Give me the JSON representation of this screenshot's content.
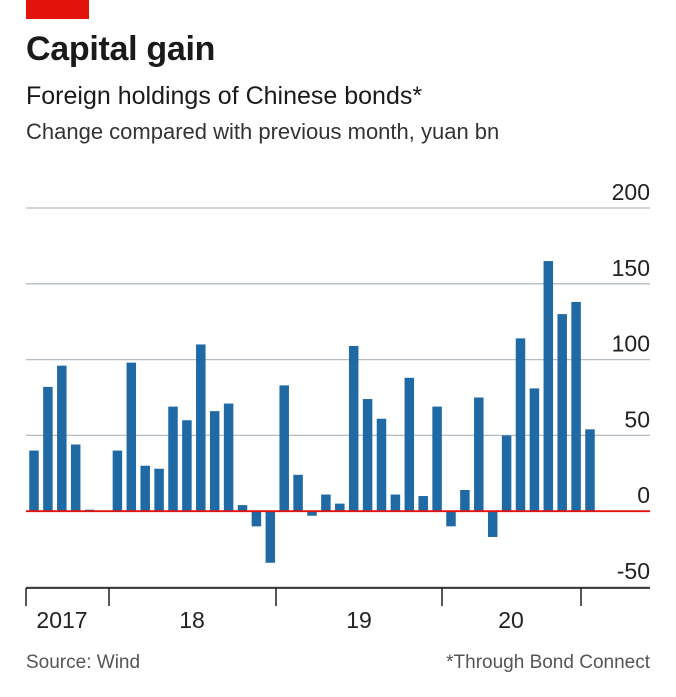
{
  "header": {
    "title": "Capital gain",
    "subtitle": "Foreign holdings of Chinese bonds*",
    "unit": "Change compared with previous month, yuan bn"
  },
  "footer": {
    "source": "Source: Wind",
    "footnote": "*Through Bond Connect"
  },
  "colors": {
    "bar": "#1f6aa5",
    "zero_line": "#e3120b",
    "grid": "#b3bcc3",
    "tag": "#e3120b"
  },
  "chart_data": {
    "type": "bar",
    "ylim": [
      -50,
      200
    ],
    "yticks": [
      "200",
      "150",
      "100",
      "50",
      "0",
      "-50"
    ],
    "ytick_values": [
      200,
      150,
      100,
      50,
      0,
      -50
    ],
    "year_labels": [
      "2017",
      "18",
      "19",
      "20"
    ],
    "grid": true,
    "categories": [
      "2017-07",
      "2017-08",
      "2017-09",
      "2017-10",
      "2017-11",
      "2017-12",
      "2018-01",
      "2018-02",
      "2018-03",
      "2018-04",
      "2018-05",
      "2018-06",
      "2018-07",
      "2018-08",
      "2018-09",
      "2018-10",
      "2018-11",
      "2018-12",
      "2019-01",
      "2019-02",
      "2019-03",
      "2019-04",
      "2019-05",
      "2019-06",
      "2019-07",
      "2019-08",
      "2019-09",
      "2019-10",
      "2019-11",
      "2019-12",
      "2020-01",
      "2020-02",
      "2020-03",
      "2020-04",
      "2020-05",
      "2020-06",
      "2020-07",
      "2020-08",
      "2020-09",
      "2020-10"
    ],
    "values": [
      40,
      82,
      96,
      44,
      1,
      0,
      40,
      98,
      30,
      28,
      69,
      60,
      110,
      66,
      71,
      4,
      -10,
      -34,
      83,
      24,
      -3,
      11,
      5,
      109,
      74,
      61,
      11,
      88,
      10,
      69,
      -10,
      14,
      75,
      -17,
      50,
      114,
      81,
      165,
      130,
      138
    ],
    "extra_values": [
      54
    ]
  }
}
